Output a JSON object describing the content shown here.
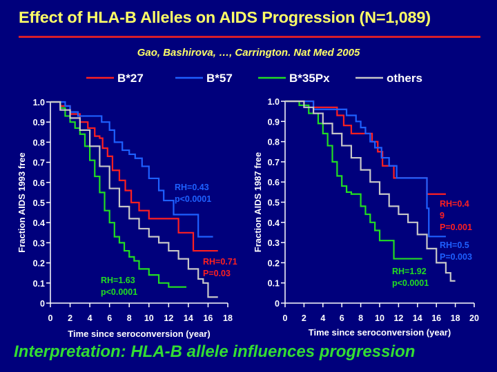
{
  "slide": {
    "title": "Effect of HLA-B Alleles  on AIDS  Progression (N=1,089)",
    "citation": "Gao, Bashirova, …, Carrington.  Nat Med 2005",
    "interpretation": "Interpretation: HLA-B allele influences progression",
    "colors": {
      "background": "#00007c",
      "title": "#ffff66",
      "rule": "#d81e2a",
      "axis": "#ffffff",
      "interpretation": "#33dd33"
    }
  },
  "legend": [
    {
      "name": "B*27",
      "color": "#ff2020"
    },
    {
      "name": "B*57",
      "color": "#1e60ff"
    },
    {
      "name": "B*35Px",
      "color": "#22dd22"
    },
    {
      "name": "others",
      "color": "#c8c8c8"
    }
  ],
  "chart_data": [
    {
      "type": "line",
      "step": true,
      "title": "",
      "xlabel": "Time since seroconversion (year)",
      "ylabel": "Fraction  AIDS 1993 free",
      "xlim": [
        0,
        18
      ],
      "ylim": [
        0,
        1
      ],
      "xticks": [
        "0",
        "2",
        "4",
        "6",
        "8",
        "10",
        "12",
        "14",
        "16",
        "18"
      ],
      "yticks": [
        "0",
        "0.1",
        "0.2",
        "0.3",
        "0.4",
        "0.5",
        "0.6",
        "0.7",
        "0.8",
        "0.9",
        "1.0"
      ],
      "grid": false,
      "series": [
        {
          "name": "B*27",
          "color": "#ff2020",
          "x": [
            0,
            1.0,
            2.0,
            3.0,
            3.8,
            4.5,
            5.0,
            5.3,
            5.8,
            6.3,
            7.0,
            7.6,
            8.2,
            9.0,
            10.0,
            11.0,
            12.0,
            13.0,
            14.5,
            16.0,
            17.0
          ],
          "y": [
            1.0,
            0.98,
            0.94,
            0.9,
            0.87,
            0.83,
            0.82,
            0.77,
            0.73,
            0.66,
            0.61,
            0.56,
            0.5,
            0.46,
            0.42,
            0.42,
            0.42,
            0.35,
            0.26,
            0.26,
            0.26
          ]
        },
        {
          "name": "B*57",
          "color": "#1e60ff",
          "x": [
            0,
            1.5,
            2.0,
            2.8,
            3.5,
            4.0,
            5.2,
            6.0,
            6.5,
            7.3,
            8.0,
            8.6,
            9.3,
            10.0,
            11.0,
            11.5,
            12.5,
            14.5,
            15.0,
            16.5
          ],
          "y": [
            1.0,
            0.98,
            0.95,
            0.93,
            0.93,
            0.93,
            0.9,
            0.86,
            0.8,
            0.76,
            0.74,
            0.72,
            0.68,
            0.62,
            0.56,
            0.51,
            0.44,
            0.44,
            0.33,
            0.33
          ]
        },
        {
          "name": "B*35Px",
          "color": "#22dd22",
          "x": [
            0,
            1.0,
            1.5,
            2.0,
            2.5,
            3.0,
            3.5,
            4.0,
            4.5,
            5.0,
            5.5,
            6.0,
            6.5,
            7.0,
            7.5,
            8.0,
            8.5,
            9.0,
            10.0,
            11.0,
            12.0,
            13.0,
            13.8
          ],
          "y": [
            1.0,
            0.97,
            0.93,
            0.9,
            0.87,
            0.84,
            0.78,
            0.71,
            0.63,
            0.55,
            0.46,
            0.4,
            0.33,
            0.3,
            0.26,
            0.23,
            0.21,
            0.17,
            0.14,
            0.1,
            0.08,
            0.08,
            0.08
          ]
        },
        {
          "name": "others",
          "color": "#c8c8c8",
          "x": [
            0,
            1.0,
            2.0,
            3.0,
            4.0,
            5.0,
            6.0,
            7.0,
            8.0,
            9.0,
            10.0,
            11.0,
            12.0,
            13.0,
            14.0,
            15.0,
            15.5,
            16.0,
            16.5,
            17.0
          ],
          "y": [
            1.0,
            0.96,
            0.92,
            0.86,
            0.78,
            0.68,
            0.57,
            0.48,
            0.42,
            0.37,
            0.33,
            0.3,
            0.26,
            0.22,
            0.17,
            0.12,
            0.1,
            0.03,
            0.03,
            0.03
          ]
        }
      ],
      "annotations": [
        {
          "lines": [
            "RH=0.43",
            "p<0.0001"
          ],
          "color": "#1e60ff"
        },
        {
          "lines": [
            "RH=0.71",
            "P=0.03"
          ],
          "color": "#ff2020"
        },
        {
          "lines": [
            "RH=1.63",
            "p<0.0001"
          ],
          "color": "#22dd22"
        }
      ]
    },
    {
      "type": "line",
      "step": true,
      "title": "",
      "xlabel": "Time since seroconversion (year)",
      "ylabel": "Fraction  AIDS 1987 free",
      "xlim": [
        0,
        20
      ],
      "ylim": [
        0,
        1
      ],
      "xticks": [
        "0",
        "2",
        "4",
        "6",
        "8",
        "10",
        "12",
        "14",
        "16",
        "18",
        "20"
      ],
      "yticks": [
        "0",
        "0.1",
        "0.2",
        "0.3",
        "0.4",
        "0.5",
        "0.6",
        "0.7",
        "0.8",
        "0.9",
        "1.0"
      ],
      "grid": false,
      "series": [
        {
          "name": "B*27",
          "color": "#ff2020",
          "x": [
            0,
            3.0,
            5.5,
            6.2,
            7.0,
            8.5,
            9.2,
            9.8,
            10.3,
            11.5,
            13.0,
            15.0,
            17.0
          ],
          "y": [
            1.0,
            0.97,
            0.93,
            0.88,
            0.84,
            0.84,
            0.8,
            0.75,
            0.68,
            0.62,
            0.62,
            0.54,
            0.54
          ]
        },
        {
          "name": "B*57",
          "color": "#1e60ff",
          "x": [
            0,
            3.0,
            5.5,
            6.5,
            7.5,
            8.0,
            8.5,
            9.0,
            9.5,
            10.2,
            11.0,
            11.8,
            13.0,
            14.5,
            15.0,
            15.2,
            17.0
          ],
          "y": [
            1.0,
            0.96,
            0.96,
            0.93,
            0.9,
            0.87,
            0.84,
            0.8,
            0.77,
            0.72,
            0.68,
            0.62,
            0.62,
            0.62,
            0.47,
            0.33,
            0.33
          ]
        },
        {
          "name": "B*35Px",
          "color": "#22dd22",
          "x": [
            0,
            1.5,
            2.5,
            3.5,
            4.0,
            4.5,
            5.0,
            5.5,
            6.0,
            6.5,
            7.0,
            8.0,
            8.5,
            9.0,
            9.5,
            10.0,
            11.5,
            14.5
          ],
          "y": [
            1.0,
            0.98,
            0.94,
            0.89,
            0.84,
            0.78,
            0.7,
            0.63,
            0.58,
            0.55,
            0.54,
            0.48,
            0.44,
            0.4,
            0.36,
            0.31,
            0.22,
            0.22
          ]
        },
        {
          "name": "others",
          "color": "#c8c8c8",
          "x": [
            0,
            2.0,
            3.0,
            4.0,
            5.0,
            6.0,
            7.0,
            8.0,
            9.0,
            10.0,
            11.0,
            12.0,
            13.0,
            14.0,
            15.0,
            16.0,
            17.0,
            17.5,
            18.0
          ],
          "y": [
            1.0,
            0.97,
            0.94,
            0.89,
            0.84,
            0.78,
            0.72,
            0.66,
            0.6,
            0.54,
            0.48,
            0.44,
            0.4,
            0.34,
            0.27,
            0.2,
            0.15,
            0.11,
            0.11
          ]
        }
      ],
      "annotations": [
        {
          "lines": [
            "RH=0.4",
            "9",
            "P=0.001"
          ],
          "color": "#ff2020"
        },
        {
          "lines": [
            "RH=0.5",
            "P=0.003"
          ],
          "color": "#1e60ff"
        },
        {
          "lines": [
            "RH=1.92",
            "p<0.0001"
          ],
          "color": "#22dd22"
        }
      ]
    }
  ]
}
